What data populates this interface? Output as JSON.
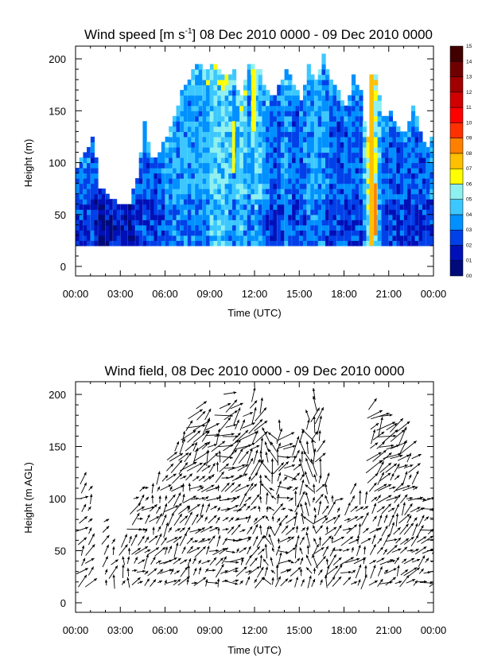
{
  "chart_data": [
    {
      "type": "heatmap",
      "title_main": "Wind speed [m s",
      "title_sup": "-1",
      "title_rest": "] 08 Dec 2010 0000 - 09 Dec 2010 0000",
      "xlabel": "Time (UTC)",
      "ylabel": "Height (m)",
      "x_ticks": [
        "00:00",
        "03:00",
        "06:00",
        "09:00",
        "12:00",
        "15:00",
        "18:00",
        "21:00",
        "00:00"
      ],
      "y_ticks": [
        "0",
        "50",
        "100",
        "150",
        "200"
      ],
      "xlim_hours": [
        0,
        24
      ],
      "ylim": [
        0,
        200
      ],
      "colorbar_labels": [
        "00",
        "01",
        "02",
        "03",
        "04",
        "05",
        "06",
        "07",
        "08",
        "09",
        "10",
        "11",
        "12",
        "13",
        "14",
        "15"
      ],
      "colorbar_colors": [
        "#000a7a",
        "#0010b8",
        "#0040e8",
        "#0090ff",
        "#3cc8ff",
        "#8ff0f0",
        "#ffff00",
        "#ffc000",
        "#ff8000",
        "#ff3000",
        "#ff0000",
        "#d00000",
        "#a00000",
        "#700000",
        "#400000"
      ],
      "profiles_hours": [
        0,
        0.5,
        1,
        1.5,
        2,
        2.5,
        3,
        3.5,
        4,
        4.5,
        5,
        5.5,
        6,
        6.5,
        7,
        7.5,
        8,
        8.5,
        9,
        9.5,
        10,
        10.5,
        11,
        11.5,
        12,
        12.5,
        13,
        13.5,
        14,
        14.5,
        15,
        15.5,
        16,
        16.5,
        17,
        17.5,
        18,
        18.5,
        19,
        19.5,
        20,
        20.5,
        21,
        21.5,
        22,
        22.5,
        23,
        23.5,
        24
      ],
      "profile_top_m": [
        95,
        110,
        120,
        75,
        70,
        60,
        55,
        55,
        80,
        140,
        100,
        110,
        125,
        140,
        170,
        180,
        190,
        185,
        195,
        190,
        180,
        185,
        160,
        195,
        190,
        175,
        160,
        170,
        185,
        170,
        160,
        190,
        180,
        205,
        175,
        170,
        150,
        180,
        165,
        120,
        185,
        140,
        150,
        130,
        125,
        150,
        130,
        110,
        135
      ],
      "mean_level": [
        2,
        2,
        2,
        1,
        1,
        1,
        1,
        1,
        2,
        2,
        2,
        2,
        3,
        3,
        3,
        3,
        3,
        3,
        4,
        4,
        4,
        3,
        4,
        3,
        4,
        3,
        2,
        2,
        3,
        2,
        2,
        3,
        3,
        3,
        2,
        2,
        2,
        2,
        2,
        5,
        5,
        2,
        2,
        2,
        2,
        2,
        2,
        2,
        3
      ]
    },
    {
      "type": "quiver",
      "title": "Wind field, 08 Dec 2010 0000 - 09 Dec 2010 0000",
      "xlabel": "Time (UTC)",
      "ylabel": "Height (m AGL)",
      "x_ticks": [
        "00:00",
        "03:00",
        "06:00",
        "09:00",
        "12:00",
        "15:00",
        "18:00",
        "21:00",
        "00:00"
      ],
      "y_ticks": [
        "0",
        "50",
        "100",
        "150",
        "200"
      ],
      "xlim_hours": [
        0,
        24
      ],
      "ylim": [
        0,
        200
      ],
      "height_levels_m": [
        20,
        30,
        40,
        50,
        60,
        70,
        80,
        90,
        100,
        110,
        120,
        130,
        140,
        150,
        160,
        170,
        180,
        190,
        200
      ],
      "column_hours": [
        0.5,
        1.0,
        2.0,
        2.6,
        3.2,
        3.6,
        4.0,
        4.4,
        4.8,
        5.2,
        5.6,
        6.0,
        6.4,
        6.8,
        7.2,
        7.6,
        8.0,
        8.4,
        8.8,
        9.2,
        9.6,
        10.0,
        10.4,
        10.8,
        11.2,
        11.6,
        12.0,
        12.4,
        12.8,
        13.2,
        13.6,
        14.0,
        14.4,
        14.8,
        15.2,
        15.6,
        16.0,
        16.4,
        16.8,
        17.2,
        17.6,
        18.2,
        18.6,
        19.0,
        19.4,
        20.0,
        20.4,
        20.8,
        21.2,
        21.6,
        22.0,
        22.4,
        22.8,
        23.2,
        23.6,
        24.0
      ],
      "column_top_m": [
        120,
        110,
        85,
        60,
        60,
        60,
        100,
        110,
        115,
        110,
        120,
        125,
        140,
        150,
        165,
        175,
        185,
        195,
        180,
        170,
        160,
        190,
        200,
        195,
        175,
        180,
        210,
        195,
        165,
        165,
        170,
        165,
        155,
        150,
        160,
        185,
        200,
        180,
        120,
        105,
        100,
        95,
        110,
        100,
        100,
        190,
        185,
        180,
        170,
        175,
        170,
        150,
        140,
        100,
        100,
        95
      ],
      "mean_direction_deg": [
        135,
        140,
        150,
        160,
        165,
        170,
        120,
        125,
        130,
        150,
        145,
        140,
        135,
        140,
        145,
        150,
        130,
        135,
        140,
        120,
        150,
        115,
        110,
        125,
        130,
        140,
        150,
        160,
        200,
        210,
        150,
        110,
        100,
        150,
        170,
        200,
        180,
        150,
        170,
        150,
        125,
        125,
        140,
        150,
        150,
        135,
        140,
        125,
        130,
        140,
        135,
        130,
        125,
        120,
        120,
        115
      ]
    }
  ]
}
